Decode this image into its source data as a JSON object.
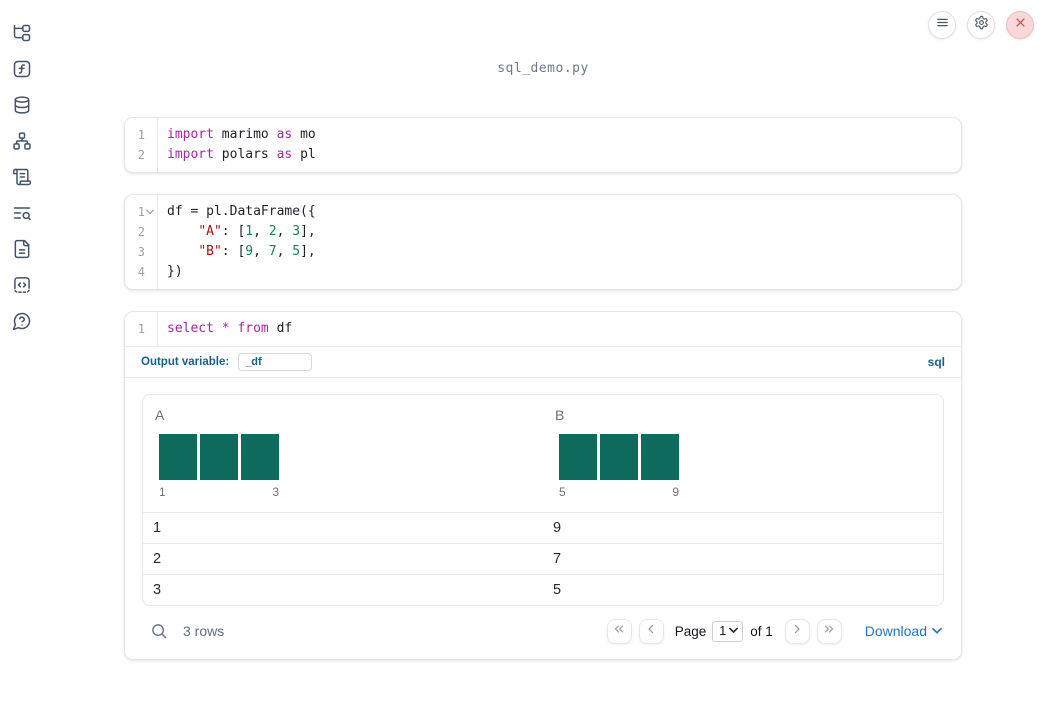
{
  "colors": {
    "accent-blue": "#14638f",
    "download-blue": "#2573be",
    "bar-green": "#0e6a5d",
    "kw": "#a626a4",
    "str": "#a31515",
    "num": "#098658",
    "close-red": "#cf4a4a"
  },
  "header": {
    "buttons": [
      {
        "name": "notebook-menu",
        "icon": "menu-icon",
        "style": "default"
      },
      {
        "name": "settings",
        "icon": "settings-icon",
        "style": "default"
      },
      {
        "name": "shutdown",
        "icon": "close-icon",
        "style": "danger"
      }
    ]
  },
  "sidebar": {
    "items": [
      {
        "name": "file-explorer",
        "icon": "file-tree-icon"
      },
      {
        "name": "variables",
        "icon": "function-square-icon"
      },
      {
        "name": "data-sources",
        "icon": "database-icon"
      },
      {
        "name": "dependency-graph",
        "icon": "network-icon"
      },
      {
        "name": "tracebacks",
        "icon": "scroll-text-icon"
      },
      {
        "name": "logs",
        "icon": "text-search-icon"
      },
      {
        "name": "documentation",
        "icon": "file-text-icon"
      },
      {
        "name": "snippets",
        "icon": "code-snippet-icon"
      },
      {
        "name": "help",
        "icon": "help-circle-icon"
      }
    ]
  },
  "notebook": {
    "filename": "sql_demo.py"
  },
  "cells": {
    "imports": {
      "lines": [
        {
          "n": "1",
          "tokens": [
            [
              "kw",
              "import"
            ],
            [
              "pl",
              " marimo "
            ],
            [
              "kw",
              "as"
            ],
            [
              "pl",
              " mo"
            ]
          ]
        },
        {
          "n": "2",
          "tokens": [
            [
              "kw",
              "import"
            ],
            [
              "pl",
              " polars "
            ],
            [
              "kw",
              "as"
            ],
            [
              "pl",
              " pl"
            ]
          ]
        }
      ]
    },
    "dataframe": {
      "lines": [
        {
          "n": "1",
          "fold": true,
          "tokens": [
            [
              "pl",
              "df = pl.DataFrame({"
            ]
          ]
        },
        {
          "n": "2",
          "tokens": [
            [
              "pl",
              "    "
            ],
            [
              "str",
              "\"A\""
            ],
            [
              "pl",
              ": ["
            ],
            [
              "num",
              "1"
            ],
            [
              "pl",
              ", "
            ],
            [
              "num",
              "2"
            ],
            [
              "pl",
              ", "
            ],
            [
              "num",
              "3"
            ],
            [
              "pl",
              "],"
            ]
          ]
        },
        {
          "n": "3",
          "tokens": [
            [
              "pl",
              "    "
            ],
            [
              "str",
              "\"B\""
            ],
            [
              "pl",
              ": ["
            ],
            [
              "num",
              "9"
            ],
            [
              "pl",
              ", "
            ],
            [
              "num",
              "7"
            ],
            [
              "pl",
              ", "
            ],
            [
              "num",
              "5"
            ],
            [
              "pl",
              "],"
            ]
          ]
        },
        {
          "n": "4",
          "tokens": [
            [
              "pl",
              "})"
            ]
          ]
        }
      ]
    },
    "sql": {
      "lines": [
        {
          "n": "1",
          "tokens": [
            [
              "kw",
              "select"
            ],
            [
              "pl",
              " "
            ],
            [
              "kw",
              "*"
            ],
            [
              "pl",
              " "
            ],
            [
              "kw",
              "from"
            ],
            [
              "pl",
              " df"
            ]
          ]
        }
      ],
      "output_variable_label": "Output variable:",
      "output_variable_value": "_df",
      "language_badge": "sql"
    }
  },
  "table": {
    "columns": [
      {
        "name": "A",
        "hist": {
          "type": "bar",
          "bars": [
            1,
            1,
            1
          ],
          "min_label": "1",
          "max_label": "3"
        }
      },
      {
        "name": "B",
        "hist": {
          "type": "bar",
          "bars": [
            1,
            1,
            1
          ],
          "min_label": "5",
          "max_label": "9"
        }
      }
    ],
    "rows": [
      [
        "1",
        "9"
      ],
      [
        "2",
        "7"
      ],
      [
        "3",
        "5"
      ]
    ],
    "footer": {
      "row_count": "3 rows",
      "page_label": "Page",
      "page_value": "1",
      "of_label": "of 1",
      "download_label": "Download"
    }
  }
}
